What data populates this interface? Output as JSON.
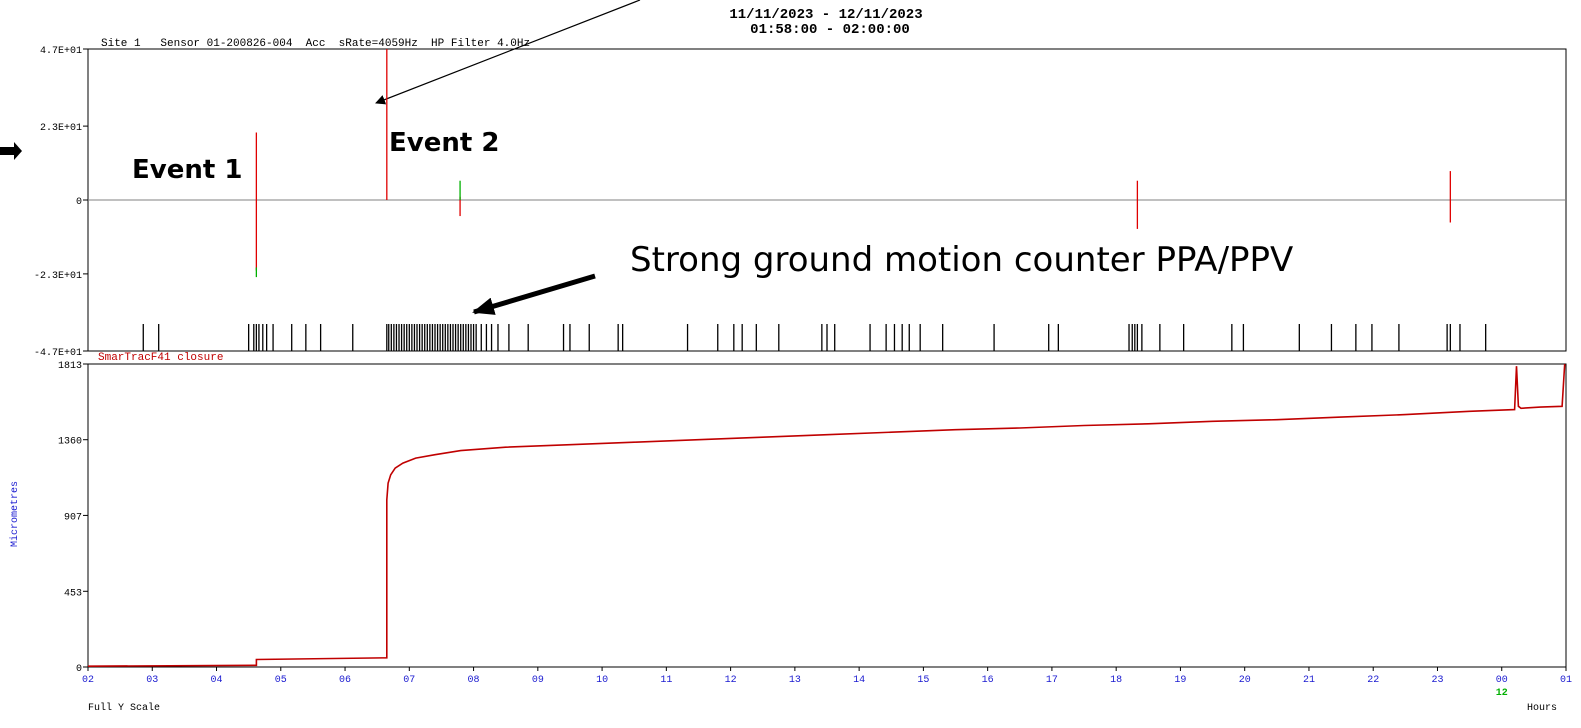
{
  "header": {
    "date_range": "11/11/2023 - 12/11/2023",
    "time_range": "01:58:00 - 02:00:00"
  },
  "annotations": {
    "event1": "Event 1",
    "event2": "Event 2",
    "counter": "Strong ground motion counter PPA/PPV"
  },
  "colors": {
    "axis": "#000000",
    "trace_red": "#e00000",
    "trace_green": "#00b000",
    "trace_blue": "#2030d0",
    "closure": "#c00000",
    "tick_blue": "#1a1ad0",
    "grey": "#808080"
  },
  "chart_data": [
    {
      "type": "line",
      "title": "Site 1   Sensor 01-200826-004  Acc  sRate=4059Hz  HP Filter 4.0Hz",
      "y_ticks": [
        "4.7E+01",
        "2.3E+01",
        "0",
        "-2.3E+01",
        "-4.7E+01"
      ],
      "y_tick_values": [
        47,
        23,
        0,
        -23,
        -47
      ],
      "ylim": [
        -47,
        47
      ],
      "xlim": [
        2,
        25
      ],
      "series": [
        {
          "color": "red",
          "spikes": [
            {
              "x": 4.62,
              "min": -22,
              "max": 21
            },
            {
              "x": 6.65,
              "min": 0,
              "max": 47
            },
            {
              "x": 7.79,
              "min": -5,
              "max": 1
            },
            {
              "x": 18.33,
              "min": -9,
              "max": 6
            },
            {
              "x": 23.2,
              "min": -7,
              "max": 9
            }
          ]
        },
        {
          "color": "green",
          "spikes": [
            {
              "x": 4.62,
              "min": -24,
              "max": -21
            },
            {
              "x": 7.79,
              "min": 0,
              "max": 6
            }
          ]
        }
      ],
      "counter_marks": [
        2.86,
        3.1,
        4.5,
        4.58,
        4.62,
        4.66,
        4.72,
        4.78,
        4.88,
        5.17,
        5.39,
        5.62,
        6.12,
        6.65,
        6.68,
        6.72,
        6.76,
        6.8,
        6.84,
        6.88,
        6.92,
        6.96,
        7.0,
        7.04,
        7.08,
        7.12,
        7.16,
        7.2,
        7.24,
        7.28,
        7.32,
        7.36,
        7.4,
        7.44,
        7.48,
        7.52,
        7.56,
        7.6,
        7.64,
        7.68,
        7.72,
        7.76,
        7.8,
        7.84,
        7.88,
        7.92,
        7.96,
        8.0,
        8.04,
        8.12,
        8.2,
        8.28,
        8.38,
        8.55,
        8.85,
        9.4,
        9.5,
        9.8,
        10.25,
        10.32,
        11.33,
        11.8,
        12.05,
        12.18,
        12.4,
        12.75,
        13.42,
        13.5,
        13.62,
        14.17,
        14.42,
        14.55,
        14.67,
        14.78,
        14.95,
        15.3,
        16.1,
        16.95,
        17.1,
        18.2,
        18.25,
        18.29,
        18.33,
        18.4,
        18.68,
        19.05,
        19.8,
        19.98,
        20.85,
        21.35,
        21.73,
        21.98,
        22.4,
        23.15,
        23.2,
        23.35,
        23.75
      ]
    },
    {
      "type": "line",
      "title": "SmarTracF41 closure",
      "ylabel": "Micrometres",
      "xlabel": "Hours",
      "footer": "Full Y Scale",
      "y_ticks": [
        "1813",
        "1360",
        "907",
        "453",
        "0"
      ],
      "y_tick_values": [
        1813,
        1360,
        907,
        453,
        0
      ],
      "ylim": [
        0,
        1813
      ],
      "xlim": [
        2,
        25
      ],
      "x_ticks": [
        "02",
        "03",
        "04",
        "05",
        "06",
        "07",
        "08",
        "09",
        "10",
        "11",
        "12",
        "13",
        "14",
        "15",
        "16",
        "17",
        "18",
        "19",
        "20",
        "21",
        "22",
        "23",
        "00",
        "01",
        "02"
      ],
      "day_marker": {
        "label": "12",
        "x": 24
      },
      "series": [
        {
          "name": "SmarTracF41 closure",
          "x": [
            2.0,
            4.62,
            4.62,
            6.65,
            6.65,
            6.67,
            6.71,
            6.78,
            6.9,
            7.1,
            7.4,
            7.8,
            8.5,
            9.5,
            10.5,
            11.5,
            12.5,
            13.5,
            14.5,
            15.5,
            16.5,
            17.5,
            18.5,
            19.5,
            20.5,
            21.5,
            22.5,
            23.5,
            24.2,
            24.23,
            24.26,
            24.3,
            24.6,
            24.94,
            24.98
          ],
          "y": [
            5,
            10,
            45,
            55,
            1000,
            1100,
            1150,
            1190,
            1220,
            1250,
            1270,
            1295,
            1315,
            1330,
            1345,
            1360,
            1375,
            1390,
            1405,
            1420,
            1430,
            1445,
            1455,
            1470,
            1480,
            1495,
            1510,
            1530,
            1540,
            1800,
            1560,
            1548,
            1555,
            1560,
            1813
          ]
        }
      ]
    }
  ]
}
